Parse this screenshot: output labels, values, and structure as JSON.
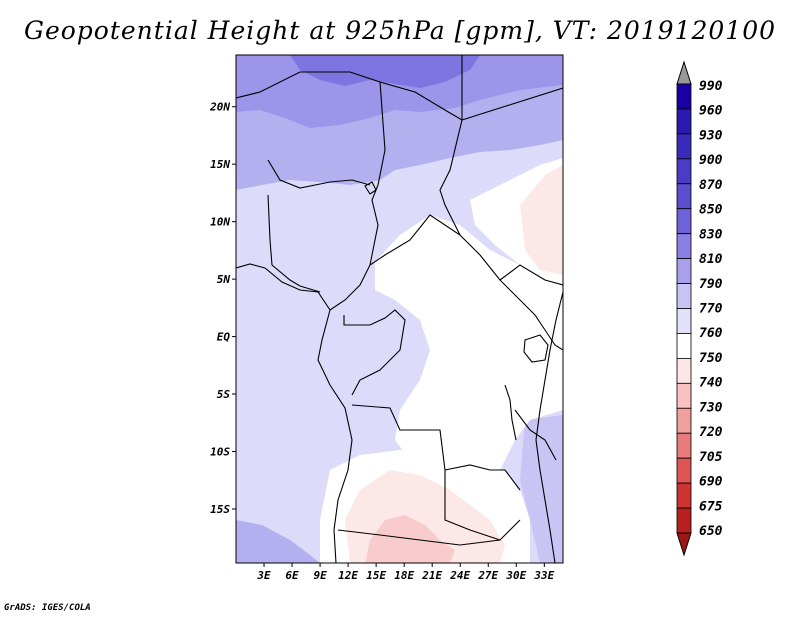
{
  "title": "Geopotential Height at 925hPa [gpm], VT: 2019120100",
  "footer": "GrADS: IGES/COLA",
  "map": {
    "lat_ticks": [
      "20N",
      "15N",
      "10N",
      "5N",
      "EQ",
      "5S",
      "10S",
      "15S"
    ],
    "lon_ticks": [
      "3E",
      "6E",
      "9E",
      "12E",
      "15E",
      "18E",
      "21E",
      "24E",
      "27E",
      "30E",
      "33E"
    ],
    "lat_values": [
      20,
      15,
      10,
      5,
      0,
      -5,
      -10,
      -15
    ],
    "lon_values": [
      3,
      6,
      9,
      12,
      15,
      18,
      21,
      24,
      27,
      30,
      33
    ],
    "ylim": [
      -19.7,
      24.5
    ],
    "xlim": [
      0,
      35
    ]
  },
  "colorbar": {
    "levels": [
      "990",
      "960",
      "930",
      "900",
      "870",
      "850",
      "830",
      "810",
      "790",
      "770",
      "760",
      "750",
      "740",
      "730",
      "720",
      "705",
      "690",
      "675",
      "650"
    ],
    "colors": [
      "#999999",
      "#1a00a3",
      "#2a1ab0",
      "#3a2bba",
      "#4a3cc4",
      "#5a4ecf",
      "#6e62d8",
      "#8a7fe2",
      "#a8a0ec",
      "#c8c4f4",
      "#e2e1fa",
      "#ffffff",
      "#fde6e6",
      "#f8c2c2",
      "#f1a0a0",
      "#e87c7c",
      "#dd5555",
      "#cc3333",
      "#b82020",
      "#9e1515"
    ]
  }
}
